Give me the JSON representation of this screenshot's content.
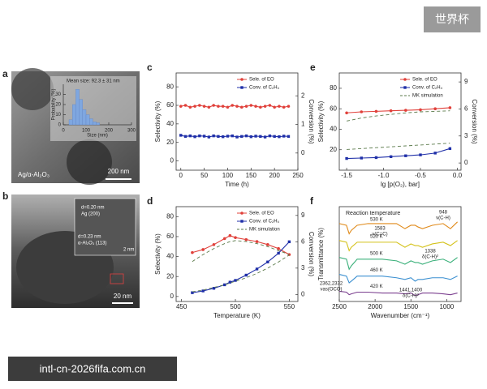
{
  "badge": "世界杯",
  "footer": "intl-cn-2026fifa.com.cn",
  "image_a": {
    "panel": "a",
    "sample": "Ag/α-Al₂O₃",
    "scale_bar": "200 nm"
  },
  "image_b": {
    "panel": "b",
    "lattice_1": "d=0.20 nm",
    "plane_1": "Ag (200)",
    "lattice_2": "d=0.23 nm",
    "plane_2": "α-Al₂O₃ (113)",
    "inset_scale_bar": "2 nm",
    "scale_bar": "20 nm"
  },
  "chart_data": [
    {
      "type": "histogram",
      "title": "Mean size: 92.3 ± 31 nm",
      "x_label": "Size (nm)",
      "y_label": "Probability (%)",
      "bins": [
        25,
        40,
        55,
        70,
        85,
        100,
        115,
        130,
        145,
        160
      ],
      "values": [
        5,
        20,
        35,
        25,
        15,
        10,
        6,
        3,
        2
      ],
      "color": "#7fa7e0",
      "xlim": [
        0,
        300
      ],
      "xticks": [
        0,
        100,
        200,
        300
      ],
      "ylim": [
        0,
        40
      ],
      "yticks": [
        0,
        10,
        20,
        30
      ]
    },
    {
      "type": "line",
      "panel": "c",
      "x_label": "Time (h)",
      "y_label": "Selectivity (%)",
      "y2_label": "Conversion (%)",
      "x": [
        0,
        10,
        20,
        30,
        40,
        50,
        60,
        70,
        80,
        90,
        100,
        110,
        120,
        130,
        140,
        150,
        160,
        170,
        180,
        190,
        200,
        210,
        220,
        230
      ],
      "series": [
        {
          "name": "Sele. of EO",
          "color": "#e0403a",
          "marker": "circle",
          "values": [
            59,
            60,
            58,
            59,
            60,
            59,
            58,
            60,
            59,
            59,
            58,
            60,
            59,
            58,
            59,
            60,
            59,
            58,
            59,
            60,
            58,
            59,
            58,
            59
          ]
        },
        {
          "name": "Conv. of C₂H₄",
          "color": "#1f2fa8",
          "marker": "square",
          "axis": "y2",
          "values": [
            0.62,
            0.58,
            0.6,
            0.57,
            0.6,
            0.59,
            0.56,
            0.6,
            0.58,
            0.57,
            0.59,
            0.6,
            0.56,
            0.58,
            0.6,
            0.57,
            0.59,
            0.58,
            0.56,
            0.6,
            0.58,
            0.57,
            0.59,
            0.58
          ]
        }
      ],
      "xlim": [
        -10,
        250
      ],
      "xticks": [
        0,
        50,
        100,
        150,
        200,
        250
      ],
      "ylim": [
        -10,
        95
      ],
      "yticks": [
        0,
        20,
        40,
        60,
        80
      ],
      "y2lim": [
        -0.6,
        2.8
      ],
      "y2ticks": [
        0,
        1,
        2
      ],
      "legend": "upper-right"
    },
    {
      "type": "line",
      "panel": "d",
      "x_label": "Temperature (K)",
      "y_label": "Selectivity (%)",
      "y2_label": "Conversion (%)",
      "x": [
        460,
        470,
        480,
        490,
        495,
        500,
        510,
        520,
        530,
        540,
        550
      ],
      "series": [
        {
          "name": "Sele. of EO",
          "color": "#e0403a",
          "marker": "circle",
          "values": [
            44,
            47,
            52,
            58,
            61,
            59,
            57,
            55,
            52,
            48,
            42
          ]
        },
        {
          "name": "Conv. of C₂H₄",
          "color": "#1f2fa8",
          "marker": "square",
          "axis": "y2",
          "values": [
            0.2,
            0.4,
            0.7,
            1.1,
            1.4,
            1.6,
            2.2,
            2.9,
            3.7,
            4.7,
            6.0
          ]
        },
        {
          "name": "MK simulation",
          "color": "#5a7a4a",
          "linestyle": "dashed",
          "values": [
            35,
            42,
            48,
            53,
            55,
            56,
            55,
            53,
            50,
            46,
            42
          ]
        },
        {
          "color": "#5a7a4a",
          "linestyle": "dashed",
          "axis": "y2",
          "values": [
            0.3,
            0.5,
            0.8,
            1.1,
            1.3,
            1.5,
            1.9,
            2.4,
            3.0,
            3.7,
            4.5
          ]
        }
      ],
      "xlim": [
        445,
        558
      ],
      "xticks": [
        450,
        500,
        550
      ],
      "ylim": [
        -5,
        90
      ],
      "yticks": [
        0,
        20,
        40,
        60,
        80
      ],
      "y2lim": [
        -0.8,
        10
      ],
      "y2ticks": [
        0,
        3,
        6,
        9
      ],
      "legend": "upper-right"
    },
    {
      "type": "line",
      "panel": "e",
      "x_label": "lg [p(O₂), bar]",
      "y_label": "Selectivity (%)",
      "y2_label": "Conversion (%)",
      "x": [
        -1.5,
        -1.3,
        -1.1,
        -0.9,
        -0.7,
        -0.5,
        -0.3,
        -0.1
      ],
      "series": [
        {
          "name": "Sele. of EO",
          "color": "#e0403a",
          "marker": "circle",
          "values": [
            56,
            57,
            57.5,
            58,
            58.5,
            59,
            60,
            61
          ]
        },
        {
          "name": "Conv. of C₂H₄",
          "color": "#1f2fa8",
          "marker": "square",
          "axis": "y2",
          "values": [
            0.5,
            0.55,
            0.6,
            0.7,
            0.8,
            0.9,
            1.1,
            1.6
          ]
        },
        {
          "name": "MK simulation",
          "color": "#5a7a4a",
          "linestyle": "dashed",
          "values": [
            48,
            51,
            53,
            54.5,
            56,
            57,
            57.5,
            58
          ]
        },
        {
          "color": "#5a7a4a",
          "linestyle": "dashed",
          "axis": "y2",
          "values": [
            1.5,
            1.6,
            1.7,
            1.8,
            1.9,
            2.0,
            2.1,
            2.2
          ]
        }
      ],
      "xlim": [
        -1.6,
        0.05
      ],
      "xticks": [
        -1.5,
        {
          "value": -1,
          "label": "-1.0"
        },
        -0.5,
        {
          "value": 0,
          "label": "0.0"
        }
      ],
      "ylim": [
        0,
        95
      ],
      "yticks": [
        20,
        40,
        60,
        80
      ],
      "y2lim": [
        -0.8,
        10
      ],
      "y2ticks": [
        0,
        3,
        6,
        9
      ],
      "legend": "upper-right"
    },
    {
      "type": "line",
      "panel": "f",
      "x_label": "Wavenumber (cm⁻¹)",
      "y_label": "Transmittance (%)",
      "subtitle": "Reaction temperature",
      "x": [
        2500,
        2400,
        2362,
        2332,
        2250,
        2100,
        1900,
        1700,
        1583,
        1500,
        1441,
        1400,
        1338,
        1200,
        1050,
        948,
        850
      ],
      "series": [
        {
          "name": "530 K",
          "color": "#e08a1a",
          "values": [
            4.6,
            4.5,
            4.0,
            4.2,
            4.5,
            4.6,
            4.6,
            4.6,
            4.3,
            4.5,
            4.5,
            4.4,
            4.3,
            4.5,
            4.6,
            4.3,
            4.7
          ]
        },
        {
          "name": "520 K",
          "color": "#d4c21a",
          "values": [
            3.6,
            3.5,
            3.0,
            3.2,
            3.5,
            3.5,
            3.5,
            3.5,
            3.2,
            3.4,
            3.3,
            3.3,
            3.2,
            3.4,
            3.5,
            3.3,
            3.6
          ]
        },
        {
          "name": "500 K",
          "color": "#3ab07a",
          "values": [
            2.6,
            2.5,
            1.9,
            2.1,
            2.5,
            2.5,
            2.5,
            2.4,
            2.2,
            2.4,
            2.3,
            2.3,
            2.2,
            2.4,
            2.5,
            2.3,
            2.6
          ]
        },
        {
          "name": "460 K",
          "color": "#3a8fd0",
          "values": [
            1.6,
            1.5,
            1.1,
            1.2,
            1.5,
            1.5,
            1.5,
            1.4,
            1.3,
            1.4,
            1.2,
            1.3,
            1.3,
            1.4,
            1.4,
            1.3,
            1.5
          ]
        },
        {
          "name": "420 K",
          "color": "#7b3f8f",
          "values": [
            0.6,
            0.55,
            0.4,
            0.45,
            0.55,
            0.55,
            0.5,
            0.5,
            0.45,
            0.5,
            0.35,
            0.4,
            0.5,
            0.5,
            0.45,
            0.4,
            0.5
          ]
        }
      ],
      "annotations": [
        {
          "number": "948",
          "mode": "ν(C-H)"
        },
        {
          "number": "1583",
          "mode": "ν(C=C)"
        },
        {
          "number": "1338",
          "mode": "δ(C-H)²"
        },
        {
          "number": "2362,2332",
          "mode": "νas(OCO)"
        },
        {
          "number": "1441,1400",
          "mode": "δ(C-H)²"
        }
      ],
      "xlim": [
        2500,
        800
      ],
      "xticks": [
        2500,
        2000,
        1500,
        1000
      ],
      "ylim": [
        0,
        5.6
      ],
      "legend": "inline"
    }
  ]
}
